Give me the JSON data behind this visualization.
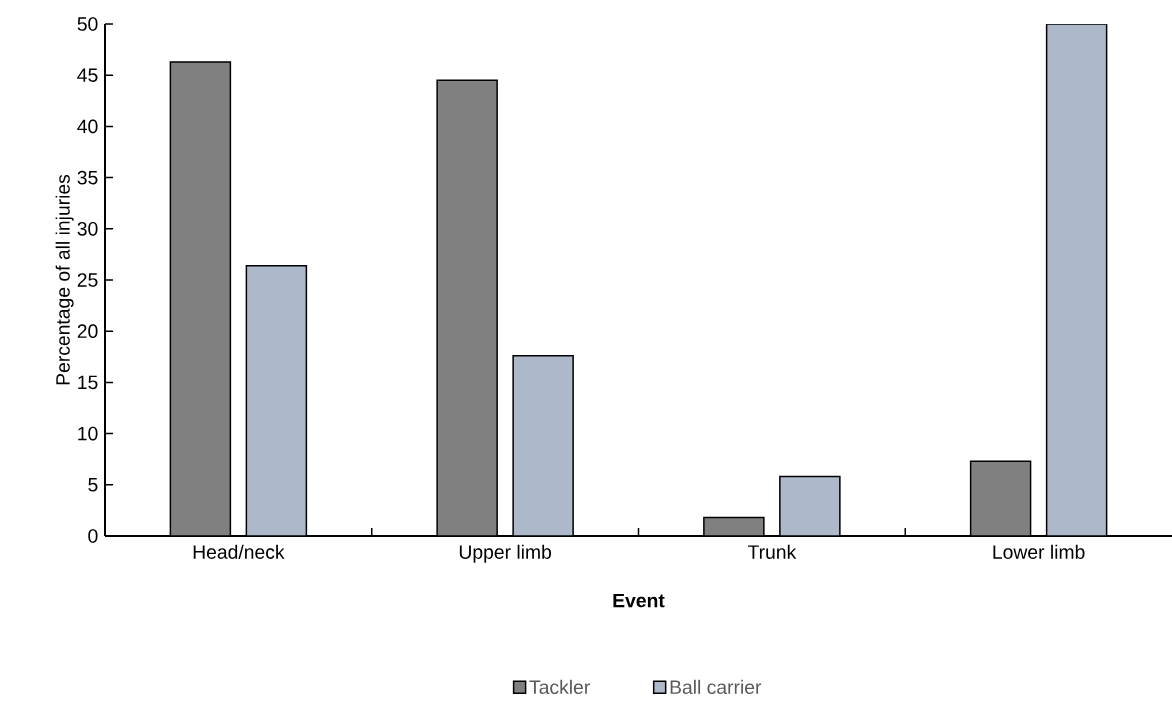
{
  "chart_data": {
    "type": "bar",
    "xlabel": "Event",
    "ylabel": "Percentage of all injuries",
    "categories": [
      "Head/neck",
      "Upper limb",
      "Trunk",
      "Lower limb"
    ],
    "series": [
      {
        "name": "Tackler",
        "color": "#808080",
        "values": [
          46.3,
          44.5,
          1.8,
          7.3
        ]
      },
      {
        "name": "Ball carrier",
        "color": "#adb9ca",
        "values": [
          26.4,
          17.6,
          5.8,
          50.0
        ]
      }
    ],
    "ylim": [
      0,
      50
    ],
    "yticks": [
      0,
      5,
      10,
      15,
      20,
      25,
      30,
      35,
      40,
      45,
      50
    ],
    "grid": false,
    "legend": "bottom"
  }
}
